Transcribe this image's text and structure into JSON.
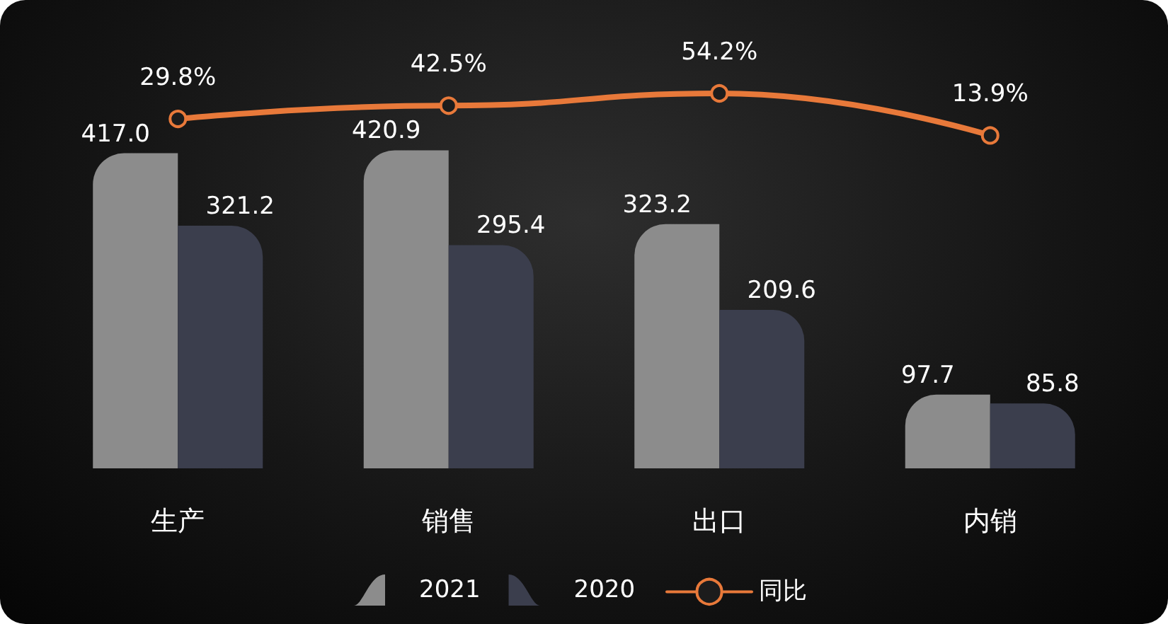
{
  "chart_data": [
    {
      "type": "bar",
      "categories": [
        "生产",
        "销售",
        "出口",
        "内销"
      ],
      "series": [
        {
          "name": "2021",
          "color": "#8c8c8c",
          "values": [
            417.0,
            420.9,
            323.2,
            97.7
          ],
          "value_labels": [
            "417.0",
            "420.9",
            "323.2",
            "97.7"
          ]
        },
        {
          "name": "2020",
          "color": "#3b3e4d",
          "values": [
            321.2,
            295.4,
            209.6,
            85.8
          ],
          "value_labels": [
            "321.2",
            "295.4",
            "209.6",
            "85.8"
          ]
        }
      ],
      "legend": "bottom",
      "grid": false,
      "tick_labels": "x"
    },
    {
      "type": "line",
      "categories": [
        null,
        null,
        null,
        null
      ],
      "series": [
        {
          "name": "同比",
          "color": "#e8793a",
          "values": [
            29.8,
            42.5,
            54.2,
            13.9
          ],
          "value_labels": [
            "29.8%",
            "42.5%",
            "54.2%",
            "13.9%"
          ]
        }
      ],
      "marker": "circle",
      "legend": "bottom",
      "grid": false,
      "tick_labels": "x"
    }
  ]
}
